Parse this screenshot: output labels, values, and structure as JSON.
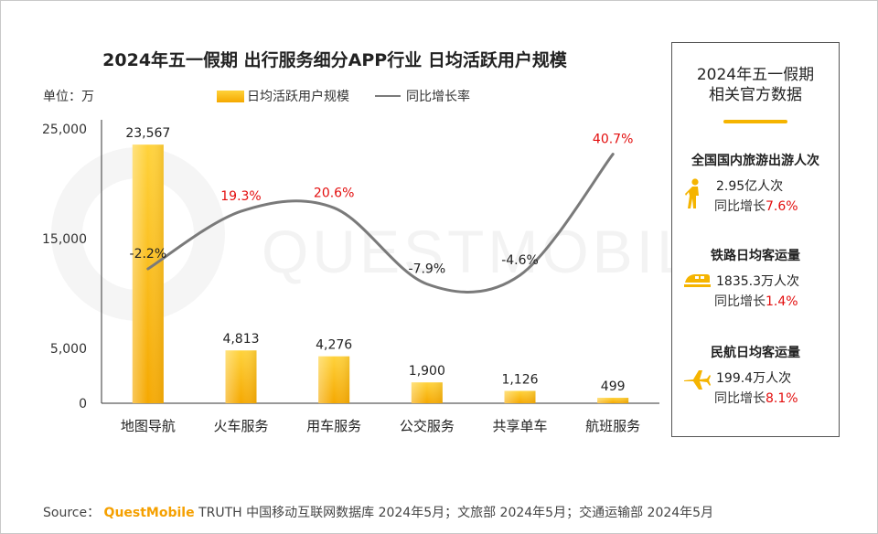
{
  "header": {
    "title": "2024年五一假期 出行服务细分APP行业 日均活跃用户规模",
    "unit": "单位：万"
  },
  "legend": {
    "bar_label": "日均活跃用户规模",
    "line_label": "同比增长率"
  },
  "chart_data": {
    "type": "bar+line",
    "title": "2024年五一假期 出行服务细分APP行业 日均活跃用户规模",
    "categories": [
      "地图导航",
      "火车服务",
      "用车服务",
      "公交服务",
      "共享单车",
      "航班服务"
    ],
    "series": [
      {
        "name": "日均活跃用户规模",
        "type": "bar",
        "axis": "left",
        "values": [
          23567,
          4813,
          4276,
          1900,
          1126,
          499
        ],
        "labels": [
          "23,567",
          "4,813",
          "4,276",
          "1,900",
          "1,126",
          "499"
        ]
      },
      {
        "name": "同比增长率",
        "type": "line",
        "axis": "secondary",
        "smooth": true,
        "values": [
          -2.2,
          19.3,
          20.6,
          -7.9,
          -4.6,
          40.7
        ],
        "labels": [
          "-2.2%",
          "19.3%",
          "20.6%",
          "-7.9%",
          "-4.6%",
          "40.7%"
        ]
      }
    ],
    "yticks": [
      {
        "value": 0,
        "label": "0"
      },
      {
        "value": 5000,
        "label": "5,000"
      },
      {
        "value": 15000,
        "label": "15,000"
      },
      {
        "value": 25000,
        "label": "25,000"
      }
    ],
    "ylim": [
      0,
      25000
    ],
    "y2lim": [
      -20,
      45
    ],
    "ylabel": "单位：万",
    "legend_position": "top",
    "grid": false
  },
  "panel": {
    "title_line1": "2024年五一假期",
    "title_line2": "相关官方数据",
    "items": [
      {
        "label": "全国国内旅游出游人次",
        "icon": "walking-person-icon",
        "value": "2.95亿人次",
        "growth_prefix": "同比增长",
        "growth": "7.6%"
      },
      {
        "label": "铁路日均客运量",
        "icon": "train-icon",
        "value": "1835.3万人次",
        "growth_prefix": "同比增长",
        "growth": "1.4%"
      },
      {
        "label": "民航日均客运量",
        "icon": "airplane-icon",
        "value": "199.4万人次",
        "growth_prefix": "同比增长",
        "growth": "8.1%"
      }
    ]
  },
  "source": {
    "prefix": "Source：",
    "brand": "QuestMobile",
    "text": "TRUTH 中国移动互联网数据库 2024年5月；文旅部 2024年5月；交通运输部 2024年5月"
  },
  "watermark": "QUESTMOBILE",
  "colors": {
    "bar_top": "#ffd23a",
    "bar_bottom": "#f5a800",
    "line": "#7a7a7a",
    "positive_label": "#e30e0e",
    "negative_label": "#222222",
    "accent": "#f5b400"
  }
}
